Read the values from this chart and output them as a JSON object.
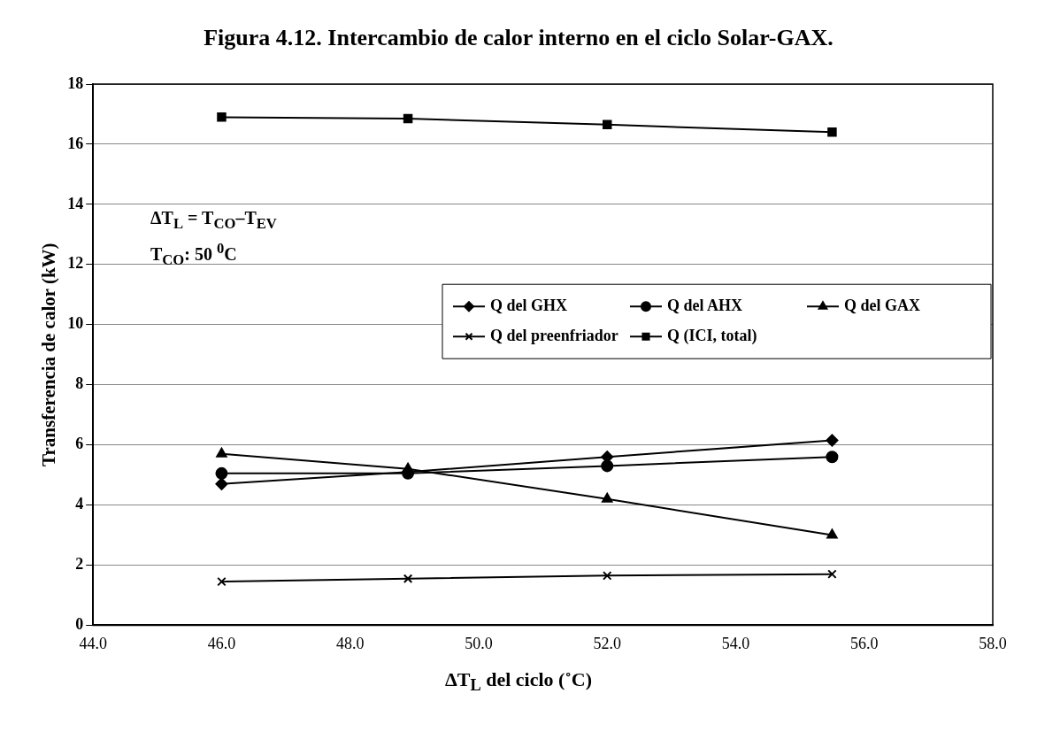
{
  "chart_data": {
    "type": "line",
    "title": "Figura 4.12. Intercambio de calor interno en el ciclo Solar-GAX.",
    "xlabel": "ΔT$_{L}$ del ciclo (˚C)",
    "ylabel": "Transferencia de calor (kW)",
    "x": [
      46.0,
      48.9,
      52.0,
      55.5
    ],
    "series": [
      {
        "name": "Q del GHX",
        "color": "#000000",
        "marker": "diamond",
        "values": [
          4.7,
          5.1,
          5.6,
          6.15
        ]
      },
      {
        "name": "Q del AHX",
        "color": "#000000",
        "marker": "circle",
        "values": [
          5.05,
          5.05,
          5.3,
          5.6
        ]
      },
      {
        "name": "Q del GAX",
        "color": "#000000",
        "marker": "triangle",
        "values": [
          5.7,
          5.2,
          4.2,
          3.0
        ]
      },
      {
        "name": "Q del preenfriador",
        "color": "#000000",
        "marker": "cross",
        "values": [
          1.45,
          1.55,
          1.65,
          1.7
        ]
      },
      {
        "name": "Q (ICI, total)",
        "color": "#000000",
        "marker": "square",
        "values": [
          16.9,
          16.85,
          16.65,
          16.4
        ]
      }
    ],
    "xlim": [
      44,
      58
    ],
    "xticks": [
      {
        "value": 44,
        "label": "44.0"
      },
      {
        "value": 46,
        "label": "46.0"
      },
      {
        "value": 48,
        "label": "48.0"
      },
      {
        "value": 50,
        "label": "50.0"
      },
      {
        "value": 52,
        "label": "52.0"
      },
      {
        "value": 54,
        "label": "54.0"
      },
      {
        "value": 56,
        "label": "56.0"
      },
      {
        "value": 58,
        "label": "58.0"
      }
    ],
    "ylim": [
      0,
      18
    ],
    "yticks": [
      0,
      2,
      4,
      6,
      8,
      10,
      12,
      14,
      16,
      18
    ],
    "grid": "y",
    "legend": "right",
    "line_style": "solid",
    "annotations": [
      "ΔT$_{L}$ = T$_{CO}$–T$_{EV}$",
      "T$_{CO}$: 50 $^{0}$C"
    ]
  }
}
